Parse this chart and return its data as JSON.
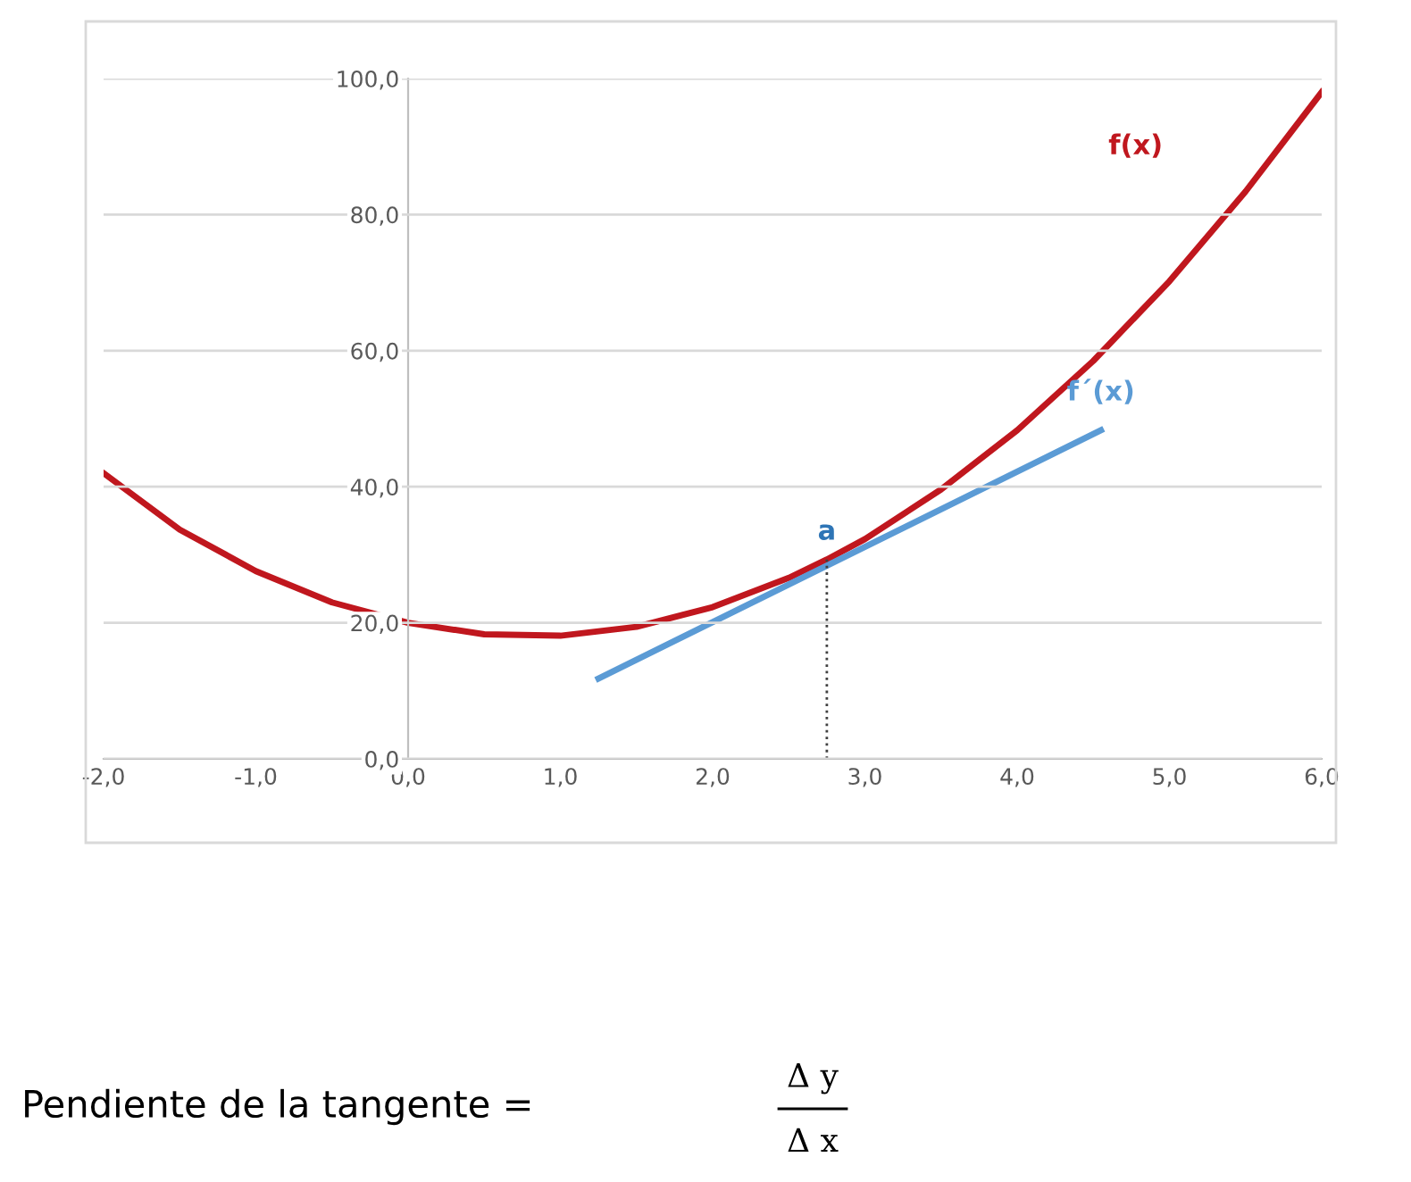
{
  "chart_data": {
    "type": "line",
    "xlim": [
      -2,
      6
    ],
    "ylim": [
      0,
      100
    ],
    "xticks": [
      {
        "value": -2,
        "label": "-2,0"
      },
      {
        "value": -1,
        "label": "-1,0"
      },
      {
        "value": 0,
        "label": "0,0"
      },
      {
        "value": 1,
        "label": "1,0"
      },
      {
        "value": 2,
        "label": "2,0"
      },
      {
        "value": 3,
        "label": "3,0"
      },
      {
        "value": 4,
        "label": "4,0"
      },
      {
        "value": 5,
        "label": "5,0"
      },
      {
        "value": 6,
        "label": "6,0"
      }
    ],
    "yticks": [
      {
        "value": 0,
        "label": "0,0"
      },
      {
        "value": 20,
        "label": "20,0"
      },
      {
        "value": 40,
        "label": "40,0"
      },
      {
        "value": 60,
        "label": "60,0"
      },
      {
        "value": 80,
        "label": "80,0"
      },
      {
        "value": 100,
        "label": "100,0"
      }
    ],
    "grid": "y",
    "legend": false,
    "marker": "none",
    "series": [
      {
        "name": "f(x)",
        "color": "#c0171e",
        "x": [
          -2,
          -1.5,
          -1,
          -0.5,
          0,
          0.5,
          1,
          1.5,
          2,
          2.5,
          2.75,
          3,
          3.5,
          4,
          4.5,
          5,
          5.5,
          6
        ],
        "values": [
          42,
          33.7,
          27.6,
          23,
          20,
          18.3,
          18.1,
          19.4,
          22.3,
          26.6,
          29.3,
          32.3,
          39.6,
          48.3,
          58.5,
          70.2,
          83.4,
          98
        ]
      },
      {
        "name": "f´(x)",
        "color": "#5b9bd5",
        "x": [
          1.25,
          4.55
        ],
        "values": [
          11.8,
          48.3
        ]
      },
      {
        "color": "#404040",
        "line_style": "dotted",
        "x": [
          2.75,
          2.75
        ],
        "values": [
          0,
          29.3
        ]
      }
    ],
    "annotations": [
      {
        "text": "a",
        "x": 2.75,
        "y": 29.3
      },
      "Pendiente de la tangente =",
      "Δ y",
      "Δ x"
    ]
  }
}
